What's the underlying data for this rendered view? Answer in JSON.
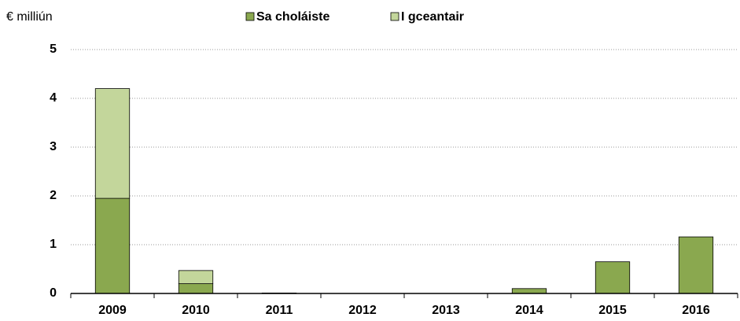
{
  "chart_data": {
    "type": "stacked_bar",
    "y_label": "€ milliún",
    "categories": [
      "2009",
      "2010",
      "2011",
      "2012",
      "2013",
      "2014",
      "2015",
      "2016"
    ],
    "series": [
      {
        "name": "Sa choláiste",
        "color": "#8aa84f",
        "values": [
          1.95,
          0.2,
          0.01,
          0,
          0,
          0.1,
          0.65,
          1.16
        ]
      },
      {
        "name": "I gceantair",
        "color": "#c3d69b",
        "values": [
          2.25,
          0.27,
          0,
          0,
          0,
          0,
          0,
          0
        ]
      }
    ],
    "ylim": [
      0,
      5
    ],
    "yticks": [
      0,
      1,
      2,
      3,
      4,
      5
    ],
    "grid": true,
    "legend": "top"
  }
}
